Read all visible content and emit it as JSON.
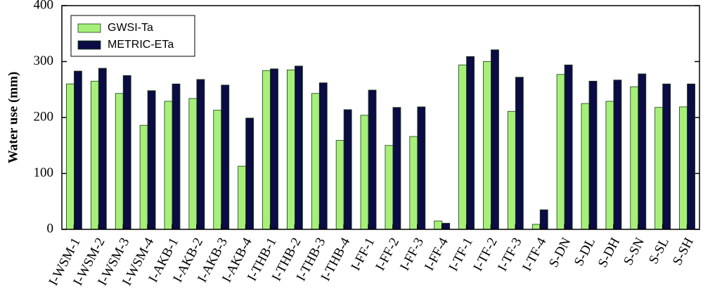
{
  "chart_data": {
    "type": "bar",
    "y_label": "Water use (mm)",
    "categories": [
      "I-WSM-1",
      "I-WSM-2",
      "I-WSM-3",
      "I-WSM-4",
      "I-AKB-1",
      "I-AKB-2",
      "I-AKB-3",
      "I-AKB-4",
      "I-THB-1",
      "I-THB-2",
      "I-THB-3",
      "I-THB-4",
      "I-FF-1",
      "I-FF-2",
      "I-FF-3",
      "I-FF-4",
      "I-TF-1",
      "I-TF-2",
      "I-TF-3",
      "I-TF-4",
      "S-DN",
      "S-DL",
      "S-DH",
      "S-SN",
      "S-SL",
      "S-SH"
    ],
    "series": [
      {
        "name": "GWSI-Ta",
        "color": "#a6f07a",
        "values": [
          260,
          265,
          243,
          186,
          229,
          234,
          213,
          113,
          284,
          285,
          243,
          159,
          204,
          150,
          166,
          15,
          294,
          300,
          211,
          9,
          277,
          225,
          229,
          255,
          218,
          219
        ]
      },
      {
        "name": "METRIC-ETa",
        "color": "#0b0b45",
        "values": [
          283,
          288,
          275,
          248,
          260,
          268,
          258,
          199,
          287,
          292,
          262,
          214,
          249,
          218,
          219,
          11,
          309,
          321,
          272,
          35,
          294,
          265,
          267,
          278,
          260,
          260
        ]
      }
    ],
    "ylim": [
      0,
      400
    ],
    "yticks": [
      0,
      100,
      200,
      300,
      400
    ],
    "legend": "upper-left"
  }
}
